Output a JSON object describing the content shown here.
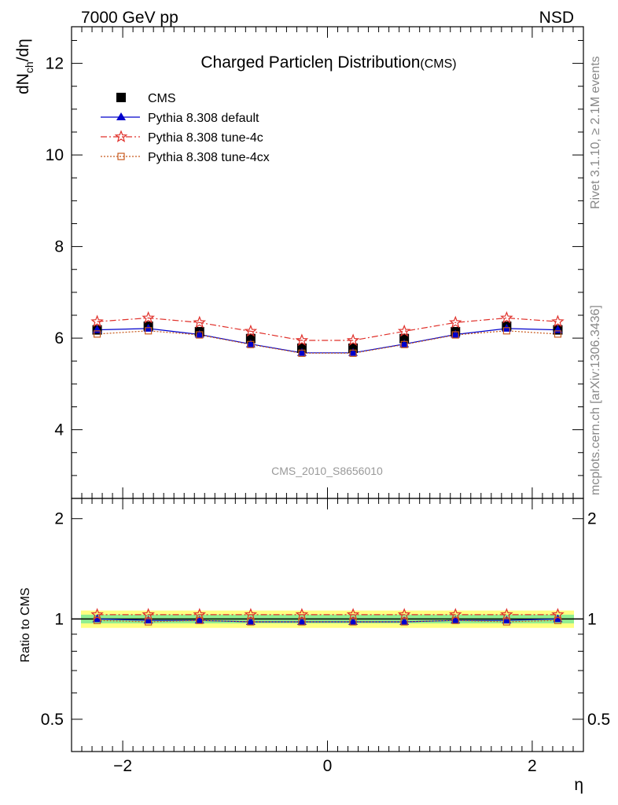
{
  "header": {
    "left": "7000 GeV pp",
    "right": "NSD"
  },
  "side_labels": {
    "rivet": "Rivet 3.1.10, ≥ 2.1M events",
    "mcplots": "mcplots.cern.ch [arXiv:1306.3436]"
  },
  "watermark": "CMS_2010_S8656010",
  "chart_data": [
    {
      "type": "scatter",
      "title": "Charged Particle",
      "title_symbol": "η",
      "title_rest": "Distribution",
      "title_tag": "(CMS)",
      "ylabel_main": "dN",
      "ylabel_sub": "ch",
      "ylabel_rest": "/dη",
      "xlim": [
        -2.5,
        2.5
      ],
      "ylim": [
        2.5,
        12.8
      ],
      "yticks": [
        4,
        6,
        8,
        10,
        12
      ],
      "ytick_labels": [
        "4",
        "6",
        "8",
        "10",
        "12"
      ],
      "x": [
        -2.25,
        -1.75,
        -1.25,
        -0.75,
        -0.25,
        0.25,
        0.75,
        1.25,
        1.75,
        2.25
      ],
      "series": [
        {
          "name": "CMS",
          "color": "#000000",
          "marker": "square-filled",
          "values": [
            6.18,
            6.26,
            6.14,
            5.99,
            5.78,
            5.78,
            5.99,
            6.14,
            6.26,
            6.18
          ]
        },
        {
          "name": "Pythia 8.308 default",
          "color": "#0000cc",
          "marker": "triangle-filled",
          "line": "solid",
          "values": [
            6.18,
            6.21,
            6.08,
            5.87,
            5.68,
            5.68,
            5.87,
            6.08,
            6.21,
            6.18
          ]
        },
        {
          "name": "Pythia 8.308 tune-4c",
          "color": "#e0302a",
          "marker": "star-open",
          "line": "dashdot",
          "values": [
            6.36,
            6.44,
            6.34,
            6.15,
            5.95,
            5.95,
            6.15,
            6.34,
            6.44,
            6.36
          ]
        },
        {
          "name": "Pythia 8.308 tune-4cx",
          "color": "#c85a1e",
          "marker": "square-open",
          "line": "dotted",
          "values": [
            6.09,
            6.16,
            6.07,
            5.86,
            5.67,
            5.67,
            5.86,
            6.07,
            6.16,
            6.09
          ]
        }
      ],
      "legend_position": "top-left"
    },
    {
      "type": "scatter",
      "xlabel": "η",
      "ylabel": "Ratio to CMS",
      "xlim": [
        -2.5,
        2.5
      ],
      "log_y": true,
      "ylim": [
        0.4,
        2.3
      ],
      "yticks": [
        0.5,
        1,
        2
      ],
      "ytick_labels": [
        "0.5",
        "1",
        "2"
      ],
      "xticks": [
        -2,
        0,
        2
      ],
      "xtick_labels": [
        "−2",
        "0",
        "2"
      ],
      "band_inner": [
        0.97,
        1.03
      ],
      "band_outer": [
        0.94,
        1.06
      ],
      "band_inner_color": "#90ee90",
      "band_outer_color": "#ffff80",
      "x": [
        -2.25,
        -1.75,
        -1.25,
        -0.75,
        -0.25,
        0.25,
        0.75,
        1.25,
        1.75,
        2.25
      ],
      "series": [
        {
          "name": "Pythia 8.308 default",
          "color": "#0000cc",
          "marker": "triangle-filled",
          "line": "solid",
          "values": [
            1.0,
            0.99,
            0.99,
            0.98,
            0.98,
            0.98,
            0.98,
            0.99,
            0.99,
            1.0
          ]
        },
        {
          "name": "Pythia 8.308 tune-4c",
          "color": "#e0302a",
          "marker": "star-open",
          "line": "dashdot",
          "values": [
            1.03,
            1.03,
            1.03,
            1.03,
            1.03,
            1.03,
            1.03,
            1.03,
            1.03,
            1.03
          ]
        },
        {
          "name": "Pythia 8.308 tune-4cx",
          "color": "#c85a1e",
          "marker": "square-open",
          "line": "dotted",
          "values": [
            0.99,
            0.98,
            0.99,
            0.98,
            0.98,
            0.98,
            0.98,
            0.99,
            0.98,
            0.99
          ]
        }
      ]
    }
  ]
}
